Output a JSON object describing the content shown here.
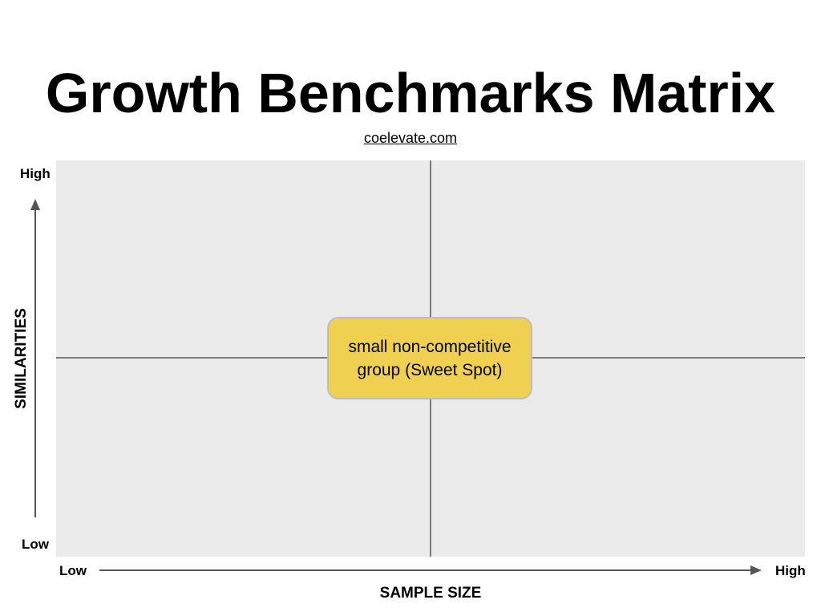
{
  "title": "Growth Benchmarks Matrix",
  "source_link": "coelevate.com",
  "chart": {
    "y_axis": {
      "label": "SIMILARITIES",
      "high": "High",
      "low": "Low"
    },
    "x_axis": {
      "label": "SAMPLE SIZE",
      "low": "Low",
      "high": "High"
    },
    "center_box": {
      "line1": "small non-competitive",
      "line2": "group (Sweet Spot)"
    }
  },
  "colors": {
    "plot_background": "#ebebeb",
    "divider": "#7a7a7a",
    "sweet_spot_fill": "#efd050",
    "arrow": "#555555"
  }
}
